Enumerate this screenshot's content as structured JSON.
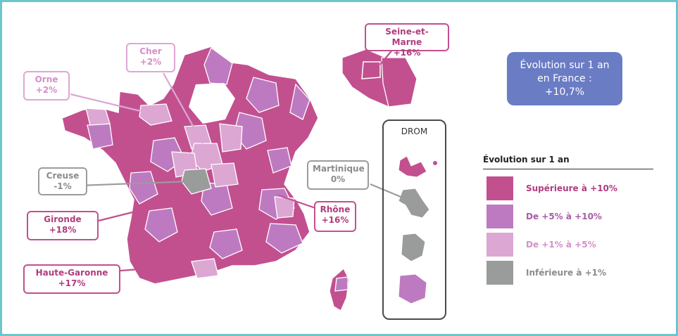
{
  "colors": {
    "frame": "#6ec6cd",
    "superieure": "#c2508f",
    "de5a10": "#be7ac0",
    "de1a5": "#dca7d3",
    "inferieure": "#9a9c9b",
    "national_box": "#6a7cc4"
  },
  "national": {
    "line1": "Évolution sur 1 an",
    "line2": "en France :",
    "line3": "+10,7%"
  },
  "drom": {
    "title": "DROM"
  },
  "legend": {
    "title": "Évolution sur 1 an",
    "items": [
      {
        "label": "Supérieure à +10%",
        "color": "#c2508f"
      },
      {
        "label": "De +5% à +10%",
        "color": "#be7ac0"
      },
      {
        "label": "De +1% à +5%",
        "color": "#dca7d3"
      },
      {
        "label": "Inférieure à +1%",
        "color": "#9a9c9b"
      }
    ]
  },
  "callouts": {
    "seine_et_marne": {
      "name": "Seine-et-Marne",
      "value": "+16%"
    },
    "cher": {
      "name": "Cher",
      "value": "+2%"
    },
    "orne": {
      "name": "Orne",
      "value": "+2%"
    },
    "creuse": {
      "name": "Creuse",
      "value": "-1%"
    },
    "gironde": {
      "name": "Gironde",
      "value": "+18%"
    },
    "haute_garonne": {
      "name": "Haute-Garonne",
      "value": "+17%"
    },
    "rhone": {
      "name": "Rhône",
      "value": "+16%"
    },
    "martinique": {
      "name": "Martinique",
      "value": "0%"
    }
  }
}
